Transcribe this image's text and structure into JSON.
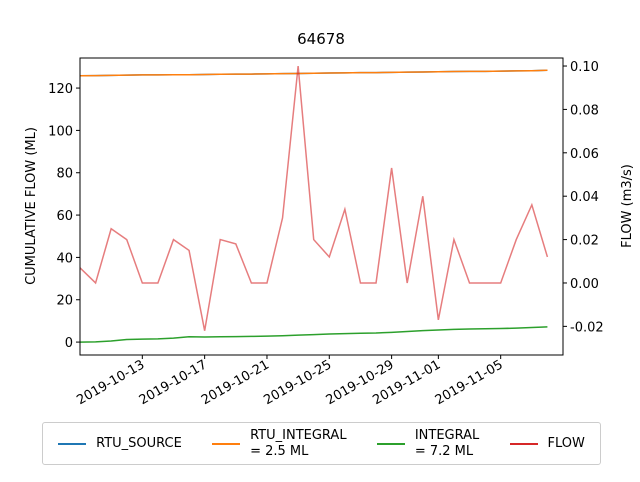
{
  "chart_data": {
    "type": "line",
    "title": "64678",
    "ylabel": "CUMULATIVE FLOW (ML)",
    "y2label": "FLOW (m3/s)",
    "x": [
      "2019-10-09",
      "2019-10-10",
      "2019-10-11",
      "2019-10-12",
      "2019-10-13",
      "2019-10-14",
      "2019-10-15",
      "2019-10-16",
      "2019-10-17",
      "2019-10-18",
      "2019-10-19",
      "2019-10-20",
      "2019-10-21",
      "2019-10-22",
      "2019-10-23",
      "2019-10-24",
      "2019-10-25",
      "2019-10-26",
      "2019-10-27",
      "2019-10-28",
      "2019-10-29",
      "2019-10-30",
      "2019-10-31",
      "2019-11-01",
      "2019-11-02",
      "2019-11-03",
      "2019-11-04",
      "2019-11-05",
      "2019-11-06",
      "2019-11-07",
      "2019-11-08"
    ],
    "xlim": [
      "2019-10-09",
      "2019-11-09"
    ],
    "xticks": [
      "2019-10-13",
      "2019-10-17",
      "2019-10-21",
      "2019-10-25",
      "2019-10-29",
      "2019-11-01",
      "2019-11-05"
    ],
    "ylim": [
      -6.1,
      134.2
    ],
    "yticks": [
      0,
      20,
      40,
      60,
      80,
      100,
      120
    ],
    "y2lim": [
      -0.0332,
      0.1037
    ],
    "y2ticks": [
      {
        "value": -0.02,
        "label": "-0.02"
      },
      {
        "value": 0,
        "label": "0.00"
      },
      {
        "value": 0.02,
        "label": "0.02"
      },
      {
        "value": 0.04,
        "label": "0.04"
      },
      {
        "value": 0.06,
        "label": "0.06"
      },
      {
        "value": 0.08,
        "label": "0.08"
      },
      {
        "value": 0.1,
        "label": "0.10"
      }
    ],
    "series": [
      {
        "name": "RTU_SOURCE",
        "color": "#1f77b4",
        "values": [
          125.8,
          125.9,
          126.0,
          126.1,
          126.2,
          126.2,
          126.3,
          126.3,
          126.4,
          126.5,
          126.6,
          126.6,
          126.7,
          126.8,
          126.9,
          127.0,
          127.1,
          127.2,
          127.3,
          127.3,
          127.4,
          127.5,
          127.6,
          127.7,
          127.8,
          127.9,
          127.9,
          128.0,
          128.1,
          128.2,
          128.4
        ]
      },
      {
        "name": "RTU_INTEGRAL\n= 2.5 ML",
        "color": "#ff7f0e",
        "values": [
          125.8,
          125.9,
          126.0,
          126.1,
          126.2,
          126.2,
          126.3,
          126.3,
          126.4,
          126.5,
          126.6,
          126.6,
          126.7,
          126.8,
          126.9,
          127.0,
          127.1,
          127.2,
          127.3,
          127.3,
          127.4,
          127.5,
          127.6,
          127.7,
          127.8,
          127.9,
          127.9,
          128.0,
          128.1,
          128.2,
          128.4
        ]
      },
      {
        "name": "INTEGRAL\n= 7.2 ML",
        "color": "#2ca02c",
        "values": [
          0,
          0.1,
          0.5,
          1.2,
          1.4,
          1.5,
          1.9,
          2.5,
          2.4,
          2.5,
          2.6,
          2.7,
          2.8,
          3.0,
          3.3,
          3.5,
          3.8,
          4.0,
          4.2,
          4.3,
          4.6,
          5.0,
          5.4,
          5.7,
          6.0,
          6.2,
          6.3,
          6.4,
          6.6,
          6.9,
          7.2
        ]
      },
      {
        "name": "FLOW",
        "color": "#d62728",
        "axis": "y2",
        "values": [
          0.007,
          0,
          0.025,
          0.02,
          0,
          0,
          0.02,
          0.015,
          -0.022,
          0.02,
          0.018,
          0,
          0,
          0.03,
          0.1,
          0.02,
          0.012,
          0.034,
          0,
          0,
          0.053,
          0,
          0.04,
          -0.017,
          0.02,
          0,
          0,
          0,
          0.02,
          0.036,
          0.012
        ]
      }
    ]
  }
}
